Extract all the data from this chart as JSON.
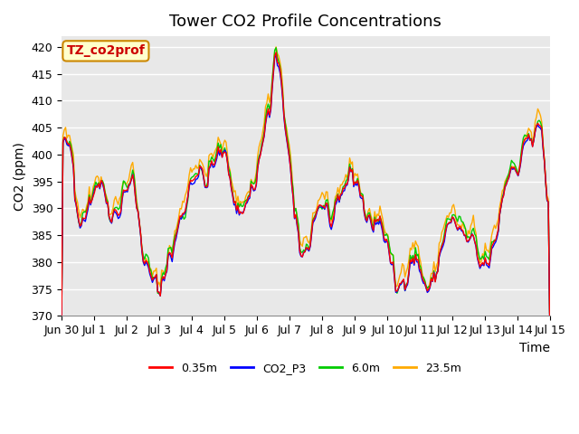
{
  "title": "Tower CO2 Profile Concentrations",
  "xlabel": "Time",
  "ylabel": "CO2 (ppm)",
  "ylim": [
    370,
    422
  ],
  "yticks": [
    370,
    375,
    380,
    385,
    390,
    395,
    400,
    405,
    410,
    415,
    420
  ],
  "xtick_labels": [
    "Jun 30",
    "Jul 1",
    "Jul 2",
    "Jul 3",
    "Jul 4",
    "Jul 5",
    "Jul 6",
    "Jul 7",
    "Jul 8",
    "Jul 9",
    "Jul 10",
    "Jul 11",
    "Jul 12",
    "Jul 13",
    "Jul 14",
    "Jul 15"
  ],
  "series_colors": {
    "0.35m": "#ff0000",
    "CO2_P3": "#0000ff",
    "6.0m": "#00cc00",
    "23.5m": "#ffaa00"
  },
  "annotation_text": "TZ_co2prof",
  "annotation_bg": "#ffffcc",
  "annotation_border": "#cc8800",
  "annotation_text_color": "#cc0000",
  "bg_color": "#e8e8e8",
  "grid_color": "#ffffff",
  "title_fontsize": 13,
  "label_fontsize": 10,
  "tick_fontsize": 9,
  "legend_fontsize": 9,
  "linewidth": 1.0
}
